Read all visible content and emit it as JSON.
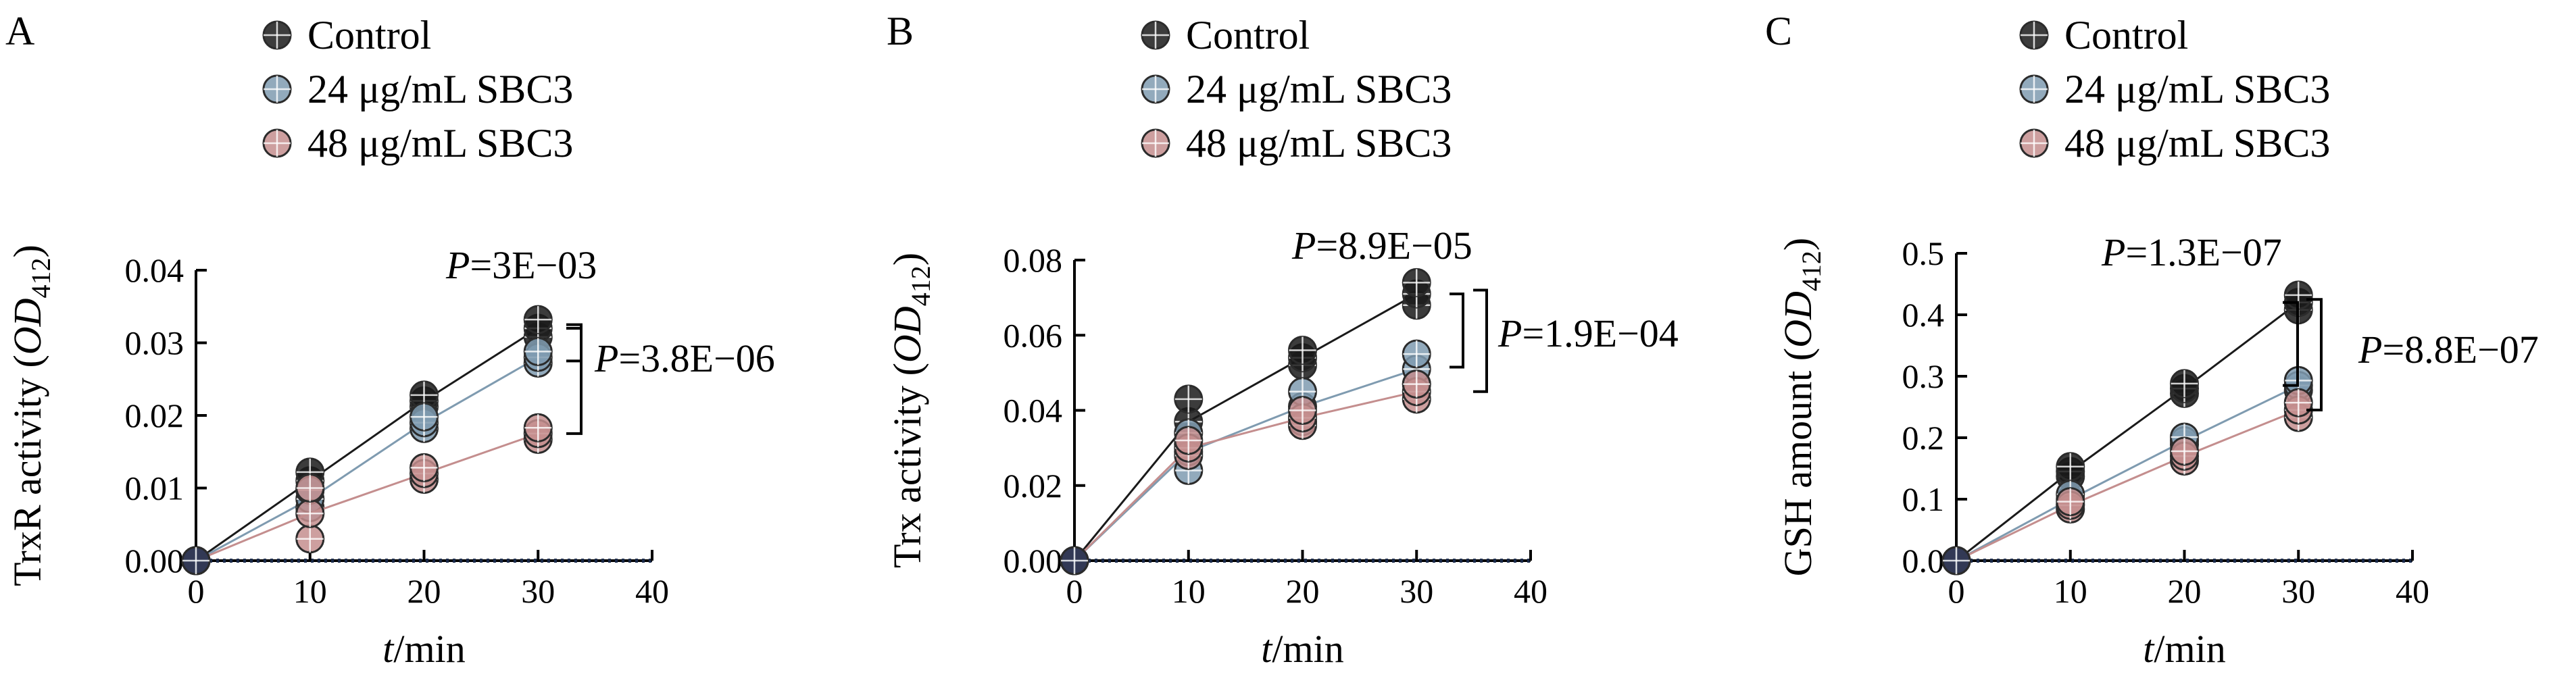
{
  "chart_data": [
    {
      "type": "scatter",
      "panel_label": "A",
      "ylabel": "TrxR activity (OD412)",
      "ylabel_prefix": "TrxR activity (",
      "ylabel_var": "OD",
      "ylabel_sub": "412",
      "ylabel_suffix": ")",
      "xlabel_var": "t",
      "xlabel_rest": "/min",
      "xlim": [
        0,
        40
      ],
      "ylim": [
        0,
        0.04
      ],
      "xticks": [
        0,
        10,
        20,
        30,
        40
      ],
      "xtick_labels": [
        "0",
        "10",
        "20",
        "30",
        "40"
      ],
      "yticks": [
        0,
        0.01,
        0.02,
        0.03,
        0.04
      ],
      "ytick_labels": [
        "0.00",
        "0.01",
        "0.02",
        "0.03",
        "0.04"
      ],
      "legend": [
        "Control",
        "24 μg/mL SBC3",
        "48 μg/mL SBC3"
      ],
      "series": [
        {
          "name": "Control",
          "color": "#1a1a1a",
          "x": [
            0,
            10,
            20,
            30
          ],
          "y": [
            0,
            0.011,
            0.022,
            0.032
          ],
          "spread": [
            0,
            0.0012,
            0.0008,
            0.0012
          ]
        },
        {
          "name": "24 μg/mL SBC3",
          "color": "#7f9bb0",
          "x": [
            0,
            10,
            20,
            30
          ],
          "y": [
            0,
            0.0085,
            0.019,
            0.028
          ],
          "spread": [
            0,
            0.0012,
            0.0008,
            0.0008
          ]
        },
        {
          "name": "48 μg/mL SBC3",
          "color": "#c48e8e",
          "x": [
            0,
            10,
            20,
            30
          ],
          "y": [
            0,
            0.0065,
            0.012,
            0.0175
          ],
          "spread": [
            0,
            0.0035,
            0.0008,
            0.0008
          ]
        }
      ],
      "annotations": [
        {
          "prefix": "P",
          "value": "=3E−03"
        },
        {
          "prefix": "P",
          "value": "=3.8E−06"
        }
      ]
    },
    {
      "type": "scatter",
      "panel_label": "B",
      "ylabel": "Trx activity (OD412)",
      "ylabel_prefix": "Trx activity (",
      "ylabel_var": "OD",
      "ylabel_sub": "412",
      "ylabel_suffix": ")",
      "xlabel_var": "t",
      "xlabel_rest": "/min",
      "xlim": [
        0,
        40
      ],
      "ylim": [
        0,
        0.08
      ],
      "xticks": [
        0,
        10,
        20,
        30,
        40
      ],
      "xtick_labels": [
        "0",
        "10",
        "20",
        "30",
        "40"
      ],
      "yticks": [
        0,
        0.02,
        0.04,
        0.06,
        0.08
      ],
      "ytick_labels": [
        "0.00",
        "0.02",
        "0.04",
        "0.06",
        "0.08"
      ],
      "legend": [
        "Control",
        "24 μg/mL SBC3",
        "48 μg/mL SBC3"
      ],
      "series": [
        {
          "name": "Control",
          "color": "#1a1a1a",
          "x": [
            0,
            10,
            20,
            30
          ],
          "y": [
            0,
            0.037,
            0.054,
            0.071
          ],
          "spread": [
            0,
            0.006,
            0.002,
            0.003
          ]
        },
        {
          "name": "24 μg/mL SBC3",
          "color": "#7f9bb0",
          "x": [
            0,
            10,
            20,
            30
          ],
          "y": [
            0,
            0.029,
            0.041,
            0.051
          ],
          "spread": [
            0,
            0.005,
            0.004,
            0.004
          ]
        },
        {
          "name": "48 μg/mL SBC3",
          "color": "#c48e8e",
          "x": [
            0,
            10,
            20,
            30
          ],
          "y": [
            0,
            0.03,
            0.038,
            0.045
          ],
          "spread": [
            0,
            0.002,
            0.002,
            0.002
          ]
        }
      ],
      "annotations": [
        {
          "prefix": "P",
          "value": "=8.9E−05"
        },
        {
          "prefix": "P",
          "value": "=1.9E−04"
        }
      ]
    },
    {
      "type": "scatter",
      "panel_label": "C",
      "ylabel": "GSH amount (OD412)",
      "ylabel_prefix": "GSH amount (",
      "ylabel_var": "OD",
      "ylabel_sub": "412",
      "ylabel_suffix": ")",
      "xlabel_var": "t",
      "xlabel_rest": "/min",
      "xlim": [
        0,
        40
      ],
      "ylim": [
        0,
        0.5
      ],
      "xticks": [
        0,
        10,
        20,
        30,
        40
      ],
      "xtick_labels": [
        "0",
        "10",
        "20",
        "30",
        "40"
      ],
      "yticks": [
        0,
        0.1,
        0.2,
        0.3,
        0.4,
        0.5
      ],
      "ytick_labels": [
        "0.0",
        "0.1",
        "0.2",
        "0.3",
        "0.4",
        "0.5"
      ],
      "legend": [
        "Control",
        "24 μg/mL SBC3",
        "48 μg/mL SBC3"
      ],
      "series": [
        {
          "name": "Control",
          "color": "#1a1a1a",
          "x": [
            0,
            10,
            20,
            30
          ],
          "y": [
            0,
            0.145,
            0.28,
            0.42
          ],
          "spread": [
            0,
            0.008,
            0.008,
            0.012
          ]
        },
        {
          "name": "24 μg/mL SBC3",
          "color": "#7f9bb0",
          "x": [
            0,
            10,
            20,
            30
          ],
          "y": [
            0,
            0.1,
            0.195,
            0.285
          ],
          "spread": [
            0,
            0.008,
            0.006,
            0.008
          ]
        },
        {
          "name": "48 μg/mL SBC3",
          "color": "#c48e8e",
          "x": [
            0,
            10,
            20,
            30
          ],
          "y": [
            0,
            0.09,
            0.17,
            0.245
          ],
          "spread": [
            0,
            0.006,
            0.008,
            0.012
          ]
        }
      ],
      "annotations": [
        {
          "prefix": "P",
          "value": "=1.3E−07"
        },
        {
          "prefix": "P",
          "value": "=8.8E−07"
        }
      ]
    }
  ]
}
